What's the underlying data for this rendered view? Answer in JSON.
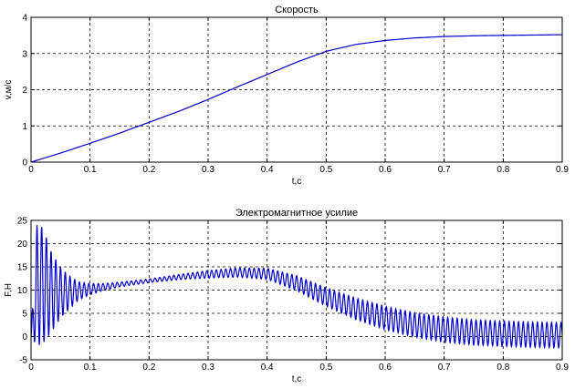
{
  "chart_data": [
    {
      "type": "line",
      "title": "Скорость",
      "xlabel": "t,c",
      "ylabel": "v,м/с",
      "xlim": [
        0,
        0.9
      ],
      "ylim": [
        0,
        4
      ],
      "x_ticks": [
        "0",
        "0.1",
        "0.2",
        "0.3",
        "0.4",
        "0.5",
        "0.6",
        "0.7",
        "0.8",
        "0.9"
      ],
      "y_ticks": [
        "0",
        "1",
        "2",
        "3",
        "4"
      ],
      "grid": true,
      "color": "#0000c8",
      "x": [
        0,
        0.05,
        0.1,
        0.15,
        0.2,
        0.25,
        0.3,
        0.35,
        0.4,
        0.45,
        0.5,
        0.55,
        0.6,
        0.65,
        0.7,
        0.75,
        0.8,
        0.85,
        0.9
      ],
      "y": [
        0,
        0.25,
        0.52,
        0.8,
        1.1,
        1.4,
        1.73,
        2.08,
        2.42,
        2.76,
        3.06,
        3.25,
        3.36,
        3.43,
        3.47,
        3.49,
        3.5,
        3.51,
        3.52
      ]
    },
    {
      "type": "line",
      "title": "Электромагнитное усилие",
      "xlabel": "t,c",
      "ylabel": "F,H",
      "xlim": [
        0,
        0.9
      ],
      "ylim": [
        -5,
        25
      ],
      "x_ticks": [
        "0",
        "0.1",
        "0.2",
        "0.3",
        "0.4",
        "0.5",
        "0.6",
        "0.7",
        "0.8",
        "0.9"
      ],
      "y_ticks": [
        "-5",
        "0",
        "5",
        "10",
        "15",
        "20",
        "25"
      ],
      "grid": true,
      "color": "#0000c8",
      "envelope": {
        "x": [
          0,
          0.01,
          0.02,
          0.035,
          0.05,
          0.065,
          0.08,
          0.1,
          0.12,
          0.15,
          0.2,
          0.25,
          0.3,
          0.35,
          0.4,
          0.45,
          0.5,
          0.55,
          0.6,
          0.65,
          0.7,
          0.75,
          0.8,
          0.85,
          0.9
        ],
        "mean": [
          0,
          11,
          11,
          9.5,
          9.5,
          9.5,
          9.8,
          10.2,
          10.6,
          11.2,
          12,
          12.8,
          13.4,
          13.8,
          13.5,
          11.5,
          8.5,
          6,
          4,
          2.5,
          1.5,
          0.9,
          0.6,
          0.4,
          0.3
        ],
        "amplitude": [
          0,
          13,
          12.5,
          8.5,
          5.5,
          3.5,
          2,
          1.2,
          0.8,
          0.5,
          0.4,
          0.55,
          0.8,
          1.0,
          1.2,
          1.6,
          2.0,
          2.3,
          2.5,
          2.6,
          2.7,
          2.7,
          2.7,
          2.7,
          2.7
        ]
      },
      "oscillation_period_s": 0.008
    }
  ]
}
